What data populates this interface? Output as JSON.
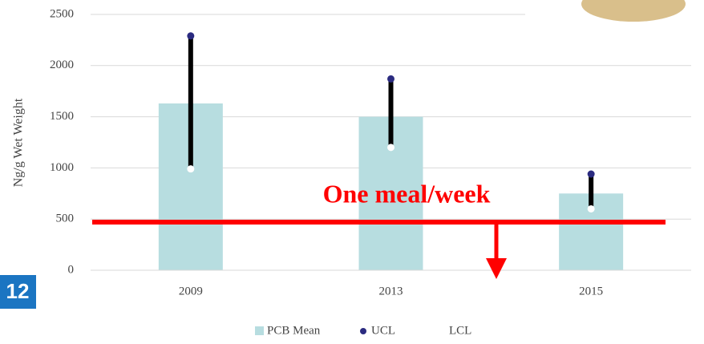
{
  "badge": "12",
  "chart_data": {
    "type": "bar",
    "ylabel": "Ng/g Wet Weight",
    "categories": [
      "2009",
      "2013",
      "2015"
    ],
    "series": [
      {
        "name": "PCB Mean",
        "color": "#b7dde0",
        "values": [
          1630,
          1500,
          750
        ]
      },
      {
        "name": "UCL",
        "color": "#2b2b80",
        "values": [
          2290,
          1870,
          940
        ]
      },
      {
        "name": "LCL",
        "color": "#ffffff",
        "values": [
          990,
          1200,
          600
        ]
      }
    ],
    "annotation": {
      "text": "One meal/week",
      "value": 470,
      "color": "#ff0000"
    },
    "ylim": [
      0,
      2500
    ],
    "yticks": [
      0,
      500,
      1000,
      1500,
      2000,
      2500
    ],
    "grid": true
  }
}
